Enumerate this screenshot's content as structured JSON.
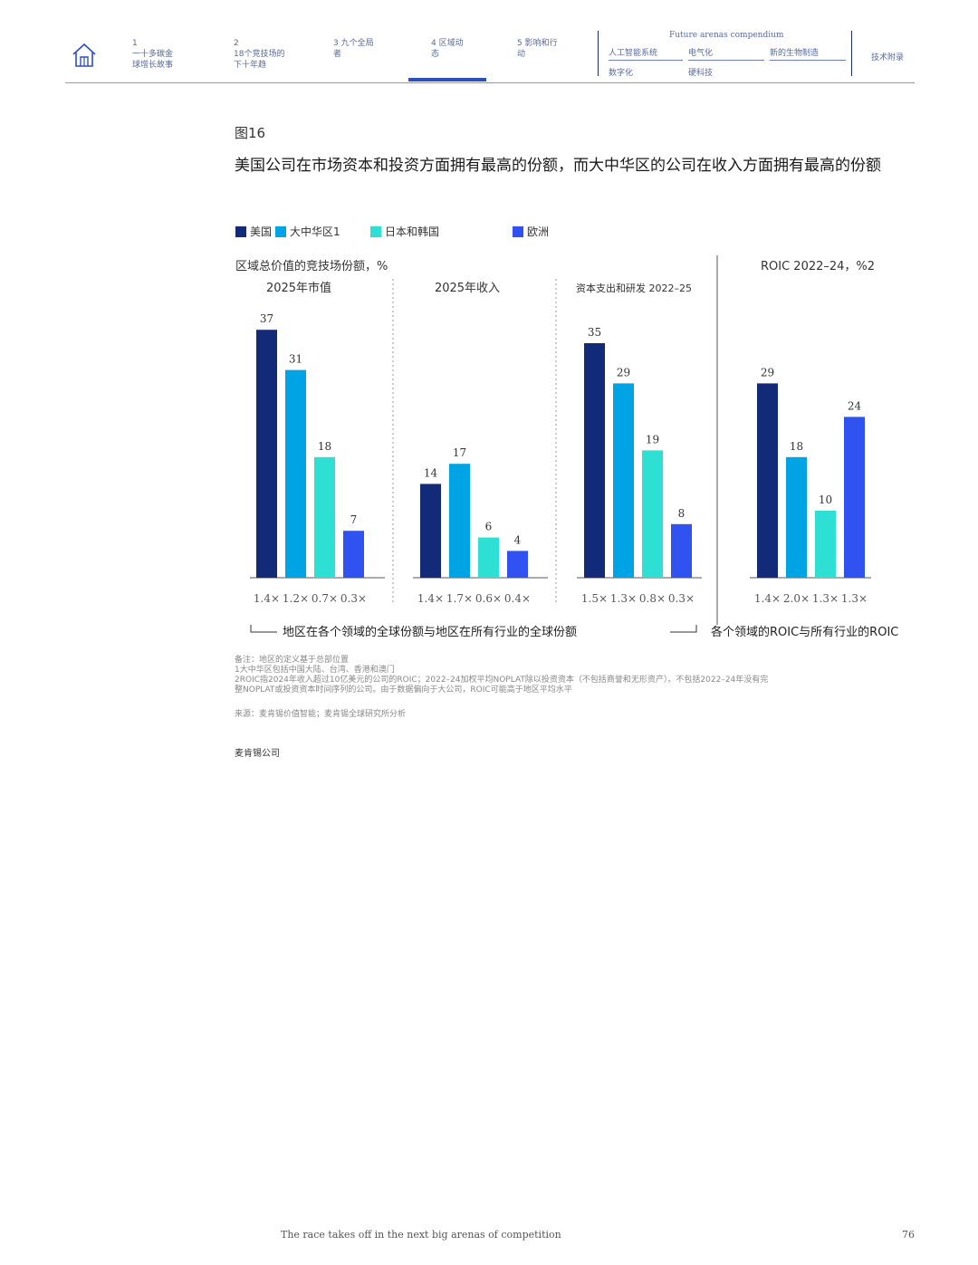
{
  "nav": {
    "items": [
      {
        "num": "1",
        "label": "一十多碳金\n球增长故事"
      },
      {
        "num": "2",
        "label": "18个竞技场的\n下十年趋"
      },
      {
        "num": "",
        "label": "3 九个全局\n者"
      },
      {
        "num": "",
        "label": "4 区域动\n态"
      },
      {
        "num": "",
        "label": "5 影响和行\n动"
      }
    ],
    "compendium_title": "Future arenas compendium",
    "compendium_items": [
      "人工智能系统",
      "电气化",
      "新的生物制造",
      "数字化",
      "硬科技"
    ],
    "appendix": "技术附录"
  },
  "figure_label": "图16",
  "figure_title": "美国公司在市场资本和投资方面拥有最高的份额，而大中华区的公司在收入方面拥有最高的份额",
  "legend": [
    {
      "name": "美国",
      "color": "#132a78"
    },
    {
      "name": "大中华区1",
      "color": "#00a4e4"
    },
    {
      "name": "日本和韩国",
      "color": "#2ee0d4"
    },
    {
      "name": "欧洲",
      "color": "#2f52f1"
    }
  ],
  "chart_data": {
    "type": "bar",
    "series_names": [
      "美国",
      "大中华区1",
      "日本和韩国",
      "欧洲"
    ],
    "left_title": "区域总价值的竞技场份额，%",
    "right_title": "ROIC 2022–24，%2",
    "panels": [
      {
        "title": "2025年市值",
        "values": [
          37,
          31,
          18,
          7
        ],
        "ratios": [
          "1.4×",
          "1.2×",
          "0.7×",
          "0.3×"
        ]
      },
      {
        "title": "2025年收入",
        "values": [
          14,
          17,
          6,
          4
        ],
        "ratios": [
          "1.4×",
          "1.7×",
          "0.6×",
          "0.4×"
        ]
      },
      {
        "title": "资本支出和研发 2022–25",
        "values": [
          35,
          29,
          19,
          8
        ],
        "ratios": [
          "1.5×",
          "1.3×",
          "0.8×",
          "0.3×"
        ]
      },
      {
        "title": "",
        "values": [
          29,
          18,
          10,
          24
        ],
        "ratios": [
          "1.4×",
          "2.0×",
          "1.3×",
          "1.3×"
        ]
      }
    ],
    "footnote_left": "地区在各个领域的全球份额与地区在所有行业的全球份额",
    "footnote_right": "各个领域的ROIC与所有行业的ROIC"
  },
  "notes": [
    "备注：地区的定义基于总部位置",
    "1大中华区包括中国大陆、台湾、香港和澳门",
    "2ROIC指2024年收入超过10亿美元的公司的ROIC；2022–24加权平均NOPLAT除以投资资本（不包括商誉和无形资产）。不包括2022–24年没有完",
    "整NOPLAT或投资资本时间序列的公司。由于数据偏向于大公司，ROIC可能高于地区平均水平"
  ],
  "source": "来源：麦肯锡价值智能；麦肯锡全球研究所分析",
  "company": "麦肯锡公司",
  "footer_text": "The race takes off in the next big arenas of competition",
  "page_number": "76"
}
